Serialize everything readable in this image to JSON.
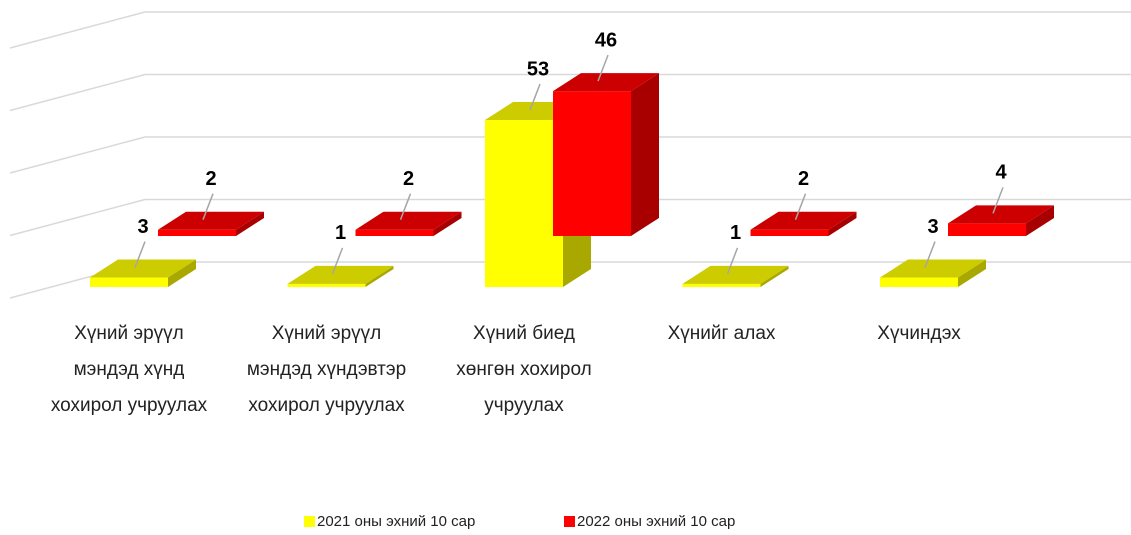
{
  "chart_data": {
    "type": "bar3d",
    "categories": [
      "Хүний эрүүл мэндэд хүнд хохирол учруулах",
      "Хүний эрүүл мэндэд хүндэвтэр хохирол учруулах",
      "Хүний биед хөнгөн хохирол учруулах",
      "Хүнийг алах",
      "Хүчиндэх"
    ],
    "series": [
      {
        "name": "2021 оны эхний 10 сар",
        "color": "#ffff00",
        "values": [
          3,
          1,
          53,
          1,
          3
        ]
      },
      {
        "name": "2022 оны эхний 10 сар",
        "color": "#ff0000",
        "values": [
          2,
          2,
          46,
          2,
          4
        ]
      }
    ],
    "ylim": [
      0,
      80
    ],
    "yticks": [
      0,
      20,
      40,
      60,
      80
    ],
    "grid": true,
    "legend": "bottom"
  }
}
